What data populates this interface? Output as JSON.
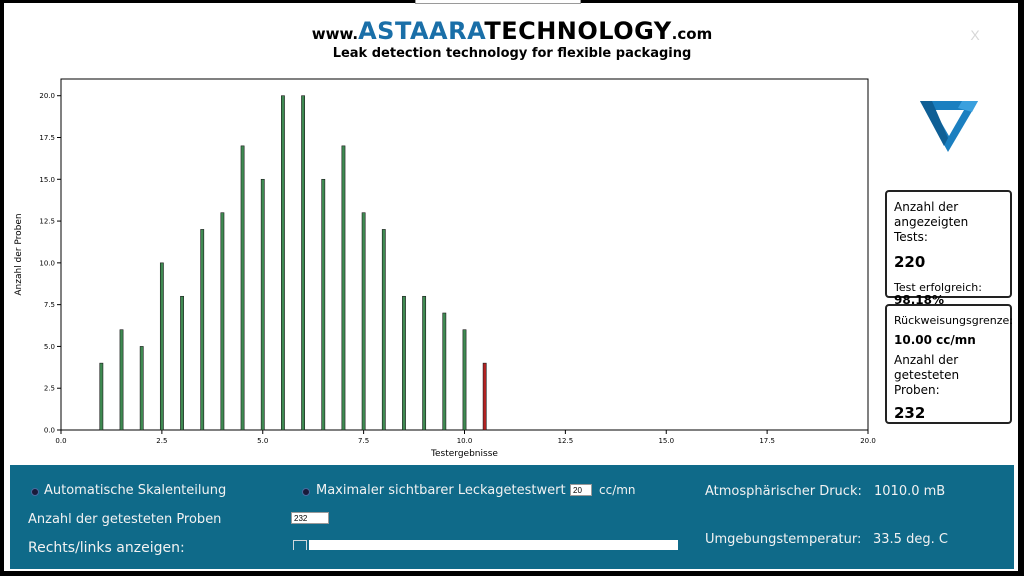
{
  "header": {
    "brand_prefix": "www.",
    "brand_part1": "ASTAARA",
    "brand_part2": "TECHNOLOGY",
    "brand_suffix": ".com",
    "tagline": "Leak detection technology for flexible packaging",
    "close_label": "X"
  },
  "chart_data": {
    "type": "bar",
    "xlabel": "Testergebnisse",
    "ylabel": "Anzahl der Proben",
    "xlim": [
      0,
      20
    ],
    "ylim": [
      0,
      21
    ],
    "x_ticks": [
      "0.0",
      "2.5",
      "5.0",
      "7.5",
      "10.0",
      "12.5",
      "15.0",
      "17.5",
      "20.0"
    ],
    "y_ticks": [
      "0.0",
      "2.5",
      "5.0",
      "7.5",
      "10.0",
      "12.5",
      "15.0",
      "17.5",
      "20.0"
    ],
    "grid": false,
    "x": [
      1.0,
      1.5,
      2.0,
      2.5,
      3.0,
      3.5,
      4.0,
      4.5,
      5.0,
      5.5,
      6.0,
      6.5,
      7.0,
      7.5,
      8.0,
      8.5,
      9.0,
      9.5,
      10.0,
      10.5
    ],
    "values": [
      4,
      6,
      5,
      10,
      8,
      12,
      13,
      17,
      15,
      20,
      20,
      15,
      17,
      13,
      12,
      8,
      8,
      7,
      6,
      4
    ],
    "colors": [
      "#3f8a52",
      "#3f8a52",
      "#3f8a52",
      "#3f8a52",
      "#3f8a52",
      "#3f8a52",
      "#3f8a52",
      "#3f8a52",
      "#3f8a52",
      "#3f8a52",
      "#3f8a52",
      "#3f8a52",
      "#3f8a52",
      "#3f8a52",
      "#3f8a52",
      "#3f8a52",
      "#3f8a52",
      "#3f8a52",
      "#3f8a52",
      "#b22222"
    ]
  },
  "info": {
    "tests_label": "Anzahl der angezeigten Tests:",
    "tests_value": "220",
    "success_label": "Test erfolgreich:",
    "success_value": "98.18%",
    "reject_label": "Rückweisungsgrenze:",
    "reject_value": "10.00 cc/mn",
    "samples_label": "Anzahl der getesteten Proben:",
    "samples_value": "232"
  },
  "controls": {
    "auto_scale_label": "Automatische Skalenteilung",
    "max_leak_label": "Maximaler sichtbarer Leckagetestwert",
    "max_leak_value": "20",
    "max_leak_unit": "cc/mn",
    "samples_label": "Anzahl der getesteten Proben",
    "samples_value": "232",
    "scroll_label": "Rechts/links anzeigen:",
    "pressure_label": "Atmosphärischer Druck:",
    "pressure_value": "1010.0 mB",
    "temp_label": "Umgebungstemperatur:",
    "temp_value": "33.5 deg. C"
  },
  "colors": {
    "panel": "#0f6a89",
    "bar_pass": "#3f8a52",
    "bar_fail": "#b22222",
    "logo_blue": "#1b7fc0"
  }
}
